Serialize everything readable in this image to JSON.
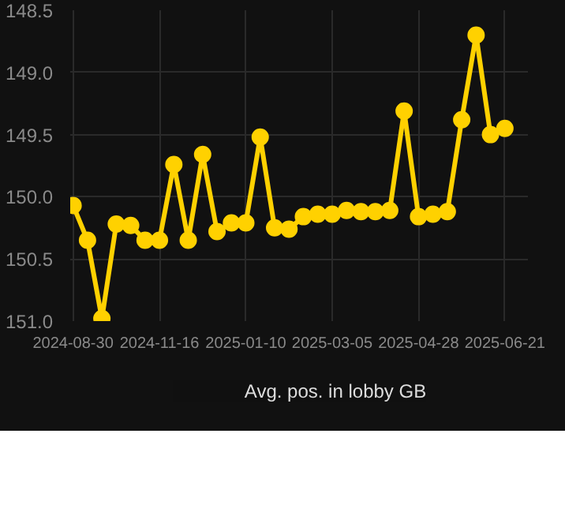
{
  "chart_data": {
    "type": "line",
    "categories": [
      "2024-08-30",
      null,
      null,
      null,
      null,
      null,
      "2024-11-16",
      null,
      null,
      null,
      null,
      null,
      "2025-01-10",
      null,
      null,
      null,
      null,
      null,
      "2025-03-05",
      null,
      null,
      null,
      null,
      null,
      "2025-04-28",
      null,
      null,
      null,
      null,
      null,
      "2025-06-21"
    ],
    "series": [
      {
        "name": "Avg. pos. in lobby GB",
        "color": "#ffd100",
        "values": [
          150.07,
          150.35,
          150.98,
          150.22,
          150.23,
          150.35,
          150.35,
          149.74,
          150.35,
          149.66,
          150.28,
          150.21,
          150.21,
          149.52,
          150.25,
          150.26,
          150.16,
          150.14,
          150.14,
          150.11,
          150.12,
          150.12,
          150.11,
          149.31,
          150.16,
          150.14,
          150.12,
          149.38,
          148.7,
          149.5,
          149.45
        ]
      }
    ],
    "ylim": [
      151.0,
      148.5
    ],
    "yticks": [
      148.5,
      {
        "value": 149,
        "label": "149.0"
      },
      149.5,
      {
        "value": 150,
        "label": "150.0"
      },
      150.5,
      {
        "value": 151,
        "label": "151.0"
      }
    ],
    "grid": true,
    "legend": "bottom",
    "marker": "circle",
    "line_style": "solid"
  }
}
